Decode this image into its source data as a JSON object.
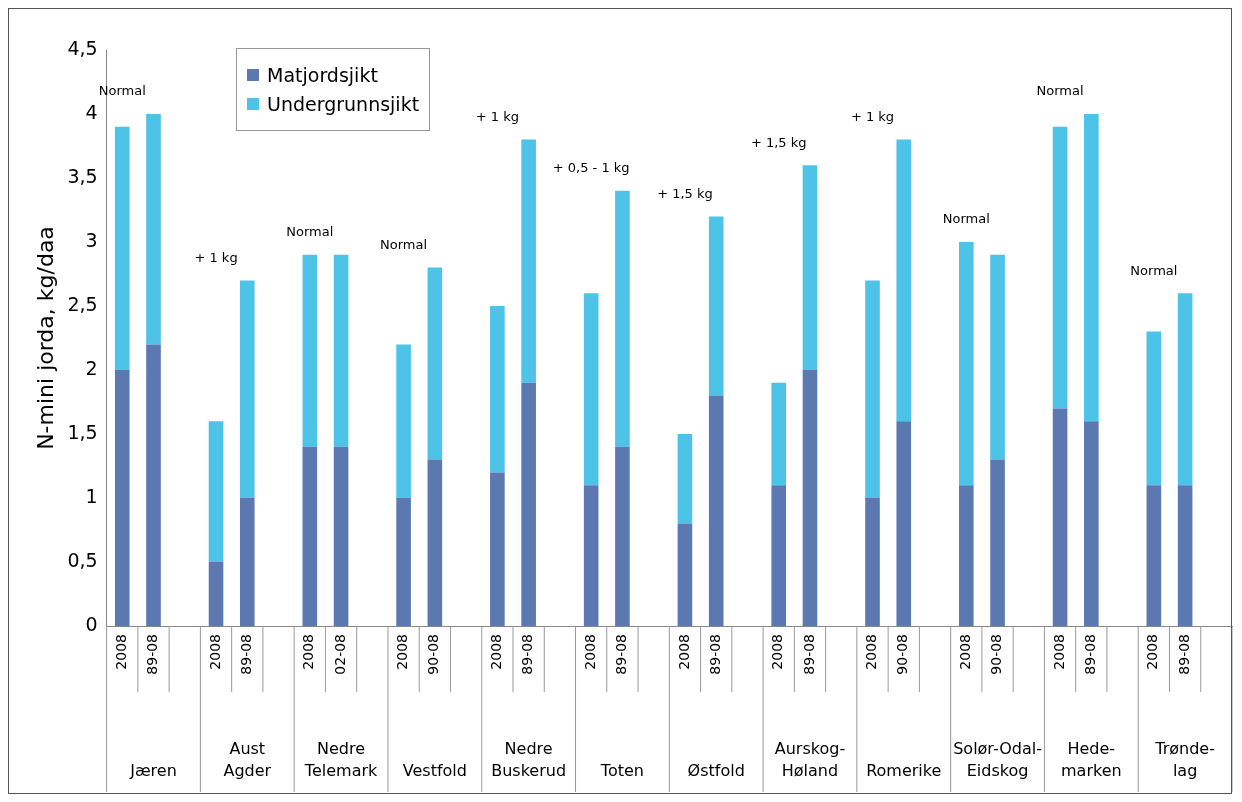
{
  "chart_data": {
    "type": "bar",
    "stacked": true,
    "ylabel": "N-mini jorda, kg/daa",
    "legend": "top left",
    "grid": false,
    "categories": [
      "2008",
      "89-08",
      null,
      "2008",
      "89-08",
      null,
      "2008",
      "02-08",
      null,
      "2008",
      "90-08",
      null,
      "2008",
      "89-08",
      null,
      "2008",
      "89-08",
      null,
      "2008",
      "89-08",
      null,
      "2008",
      "89-08",
      null,
      "2008",
      "90-08",
      null,
      "2008",
      "90-08",
      null,
      "2008",
      "89-08",
      null,
      "2008",
      "89-08",
      null
    ],
    "series": [
      {
        "name": "Matjordsjikt",
        "color": "#5b78b0",
        "values": [
          2.0,
          2.2,
          null,
          0.5,
          1.0,
          null,
          1.4,
          1.4,
          null,
          1.0,
          1.3,
          null,
          1.2,
          1.9,
          null,
          1.1,
          1.4,
          null,
          0.8,
          1.8,
          null,
          1.1,
          2.0,
          null,
          1.0,
          1.6,
          null,
          1.1,
          1.3,
          null,
          1.7,
          1.6,
          null,
          1.1,
          1.1,
          null
        ]
      },
      {
        "name": "Undergrunnsjikt",
        "color": "#4dc3e8",
        "values": [
          1.9,
          1.8,
          null,
          1.1,
          1.7,
          null,
          1.5,
          1.5,
          null,
          1.2,
          1.5,
          null,
          1.3,
          1.9,
          null,
          1.5,
          2.0,
          null,
          0.7,
          1.4,
          null,
          0.8,
          1.6,
          null,
          1.7,
          2.2,
          null,
          1.9,
          1.6,
          null,
          2.2,
          2.4,
          null,
          1.2,
          1.5,
          null
        ]
      }
    ],
    "ylim": [
      0,
      4.5
    ],
    "yticks": [
      0,
      {
        "value": 0.5,
        "label": "0,5"
      },
      1,
      {
        "value": 1.5,
        "label": "1,5"
      },
      2,
      {
        "value": 2.5,
        "label": "2,5"
      },
      3,
      {
        "value": 3.5,
        "label": "3,5"
      },
      4,
      {
        "value": 4.5,
        "label": "4,5"
      }
    ],
    "annotations": [
      "Jæren",
      "Aust\nAgder",
      "Nedre\nTelemark",
      "Vestfold",
      "Nedre\nBuskerud",
      "Toten",
      "Østfold",
      "Aurskog-\nHøland",
      "Romerike",
      "Solør-Odal-\nEidskog",
      "Hede-\nmarken",
      "Trønde-\nlag",
      "Normal",
      "+ 1 kg",
      "Normal",
      "Normal",
      "+ 1 kg",
      "+ 0,5 - 1 kg",
      "+ 1,5 kg",
      "+ 1,5 kg",
      "+ 1 kg",
      "Normal",
      "Normal",
      "Normal"
    ]
  }
}
